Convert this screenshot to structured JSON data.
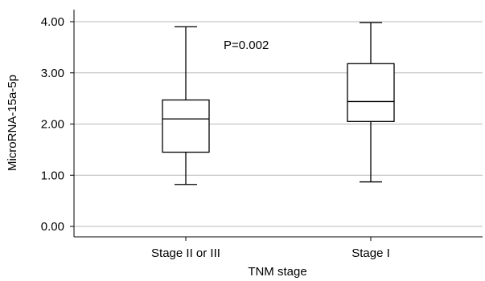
{
  "chart_data": {
    "type": "box",
    "xlabel": "TNM stage",
    "ylabel": "MicroRNA-15a-5p",
    "ylim": [
      0.0,
      4.2
    ],
    "yticks": [
      0.0,
      1.0,
      2.0,
      3.0,
      4.0
    ],
    "ytick_labels": [
      "0.00",
      "1.00",
      "2.00",
      "3.00",
      "4.00"
    ],
    "grid": "horizontal",
    "annotation": "P=0.002",
    "categories": [
      "Stage II or III",
      "Stage I"
    ],
    "boxes": [
      {
        "category": "Stage II or III",
        "min": 0.82,
        "q1": 1.45,
        "median": 2.1,
        "q3": 2.47,
        "max": 3.9
      },
      {
        "category": "Stage I",
        "min": 0.87,
        "q1": 2.05,
        "median": 2.44,
        "q3": 3.18,
        "max": 3.98
      }
    ]
  }
}
